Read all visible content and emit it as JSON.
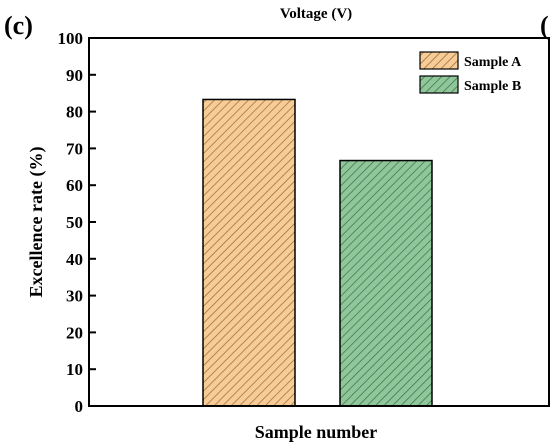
{
  "panel_label": "(c)",
  "top_text": "Voltage (V)",
  "edge_fragment": "(",
  "chart_data": {
    "type": "bar",
    "title": "",
    "xlabel": "Sample number",
    "ylabel": "Excellence rate (%)",
    "ylim": [
      0,
      100
    ],
    "yticks": [
      0,
      10,
      20,
      30,
      40,
      50,
      60,
      70,
      80,
      90,
      100
    ],
    "grid": false,
    "legend_position": "top-right",
    "series": [
      {
        "name": "Sample A",
        "value": 83.3,
        "color": "#f8cc94",
        "hatch_color": "#8a6a40"
      },
      {
        "name": "Sample B",
        "value": 66.7,
        "color": "#8fc79a",
        "hatch_color": "#3f6b48"
      }
    ]
  }
}
